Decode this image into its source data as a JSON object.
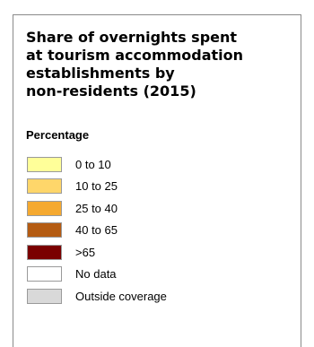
{
  "legend": {
    "title": "Share of overnights spent\nat tourism  accommodation\nestablishments by\nnon-residents (2015)",
    "subtitle": "Percentage",
    "items": [
      {
        "label": "0 to 10",
        "color": "#ffff99"
      },
      {
        "label": "10 to 25",
        "color": "#fed66a"
      },
      {
        "label": "25 to 40",
        "color": "#f5a930"
      },
      {
        "label": "40 to 65",
        "color": "#b45b12"
      },
      {
        "label": ">65",
        "color": "#7a0000"
      },
      {
        "label": "No data",
        "color": "#ffffff"
      },
      {
        "label": "Outside coverage",
        "color": "#d9d9d9"
      }
    ]
  }
}
